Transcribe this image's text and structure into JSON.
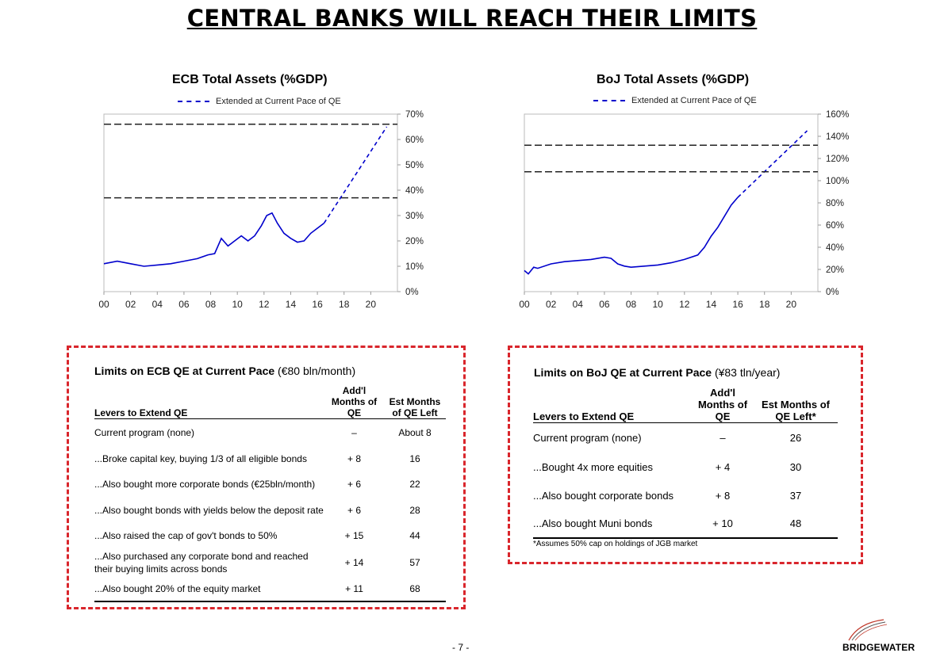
{
  "page": {
    "title": "CENTRAL BANKS WILL REACH THEIR LIMITS",
    "page_number": "- 7 -",
    "logo_text": "BRIDGEWATER"
  },
  "chart_data": [
    {
      "type": "line",
      "title": "ECB Total Assets (%GDP)",
      "legend": [
        "Extended at Current Pace of QE"
      ],
      "x_ticks": [
        "00",
        "02",
        "04",
        "06",
        "08",
        "10",
        "12",
        "14",
        "16",
        "18",
        "20"
      ],
      "y_ticks": [
        "0%",
        "10%",
        "20%",
        "30%",
        "40%",
        "50%",
        "60%",
        "70%"
      ],
      "xlim": [
        2000,
        2022
      ],
      "ylim": [
        0,
        70
      ],
      "y_axis_side": "right",
      "series": [
        {
          "style": "solid",
          "color": "#0000cc",
          "x": [
            2000,
            2001,
            2002,
            2003,
            2004,
            2005,
            2006,
            2007,
            2007.8,
            2008.3,
            2008.8,
            2009.3,
            2009.8,
            2010.3,
            2010.8,
            2011.3,
            2011.8,
            2012.2,
            2012.6,
            2013.0,
            2013.5,
            2014.0,
            2014.5,
            2015.0,
            2015.5,
            2016.0,
            2016.5
          ],
          "y": [
            11,
            12,
            11,
            10,
            10.5,
            11,
            12,
            13,
            14.5,
            15,
            21,
            18,
            20,
            22,
            20,
            22,
            26,
            30,
            31,
            27,
            23,
            21,
            19.5,
            20,
            23,
            25,
            27
          ]
        },
        {
          "name": "Extended at Current Pace of QE",
          "style": "dashed",
          "color": "#0000cc",
          "x": [
            2016.5,
            2021.2
          ],
          "y": [
            27,
            65
          ]
        },
        {
          "style": "dashed",
          "color": "#222222",
          "x": [
            2000,
            2022
          ],
          "y": [
            66,
            66
          ]
        },
        {
          "style": "dashed",
          "color": "#222222",
          "x": [
            2000,
            2022
          ],
          "y": [
            37,
            37
          ]
        }
      ]
    },
    {
      "type": "line",
      "title": "BoJ Total Assets (%GDP)",
      "legend": [
        "Extended at Current Pace of QE"
      ],
      "x_ticks": [
        "00",
        "02",
        "04",
        "06",
        "08",
        "10",
        "12",
        "14",
        "16",
        "18",
        "20"
      ],
      "y_ticks": [
        "0%",
        "20%",
        "40%",
        "60%",
        "80%",
        "100%",
        "120%",
        "140%",
        "160%"
      ],
      "xlim": [
        2000,
        2022
      ],
      "ylim": [
        0,
        160
      ],
      "y_axis_side": "right",
      "series": [
        {
          "style": "solid",
          "color": "#0000cc",
          "x": [
            2000,
            2000.3,
            2000.7,
            2001,
            2002,
            2003,
            2004,
            2005,
            2006,
            2006.5,
            2007,
            2007.5,
            2008,
            2009,
            2010,
            2011,
            2012,
            2013,
            2013.5,
            2014,
            2014.5,
            2015,
            2015.5,
            2016
          ],
          "y": [
            19,
            16,
            22,
            21,
            25,
            27,
            28,
            29,
            31,
            30,
            25,
            23,
            22,
            23,
            24,
            26,
            29,
            33,
            40,
            50,
            58,
            68,
            78,
            85
          ]
        },
        {
          "name": "Extended at Current Pace of QE",
          "style": "dashed",
          "color": "#0000cc",
          "x": [
            2016,
            2021.2
          ],
          "y": [
            85,
            145
          ]
        },
        {
          "style": "dashed",
          "color": "#222222",
          "x": [
            2000,
            2022
          ],
          "y": [
            132,
            132
          ]
        },
        {
          "style": "dashed",
          "color": "#222222",
          "x": [
            2000,
            2022
          ],
          "y": [
            108,
            108
          ]
        }
      ]
    }
  ],
  "ecb_table": {
    "title_bold": "Limits on ECB QE at Current Pace",
    "title_rest": " (€80 bln/month)",
    "headers": [
      "Levers to Extend QE",
      "Add'l Months of QE",
      "Est Months of QE Left"
    ],
    "rows": [
      [
        "Current program (none)",
        "–",
        "About 8"
      ],
      [
        "...Broke capital key, buying 1/3 of all eligible bonds",
        "+ 8",
        "16"
      ],
      [
        "...Also bought more corporate bonds (€25bln/month)",
        "+ 6",
        "22"
      ],
      [
        "...Also bought bonds with yields below the deposit rate",
        "+ 6",
        "28"
      ],
      [
        "...Also raised the cap of gov't bonds to 50%",
        "+ 15",
        "44"
      ],
      [
        "...Also purchased any corporate bond and reached their buying limits across bonds",
        "+ 14",
        "57"
      ],
      [
        "...Also bought 20% of the equity market",
        "+ 11",
        "68"
      ]
    ]
  },
  "boj_table": {
    "title_bold": "Limits on BoJ QE at Current Pace",
    "title_rest": " (¥83 tln/year)",
    "headers": [
      "Levers to Extend QE",
      "Add'l Months of QE",
      "Est Months of QE Left*"
    ],
    "rows": [
      [
        "Current program (none)",
        "–",
        "26"
      ],
      [
        "...Bought 4x more equities",
        "+ 4",
        "30"
      ],
      [
        "...Also bought corporate bonds",
        "+ 8",
        "37"
      ],
      [
        "...Also bought Muni bonds",
        "+ 10",
        "48"
      ]
    ],
    "footnote": "*Assumes 50% cap on holdings of JGB market"
  }
}
